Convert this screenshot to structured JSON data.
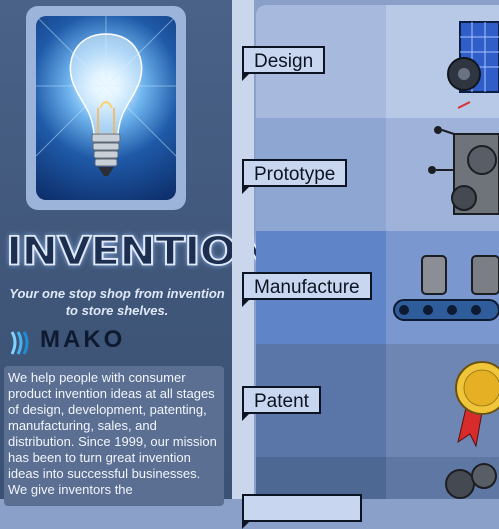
{
  "brand": {
    "title": "INVENTION",
    "tagline": "Your one stop shop from invention to store shelves.",
    "logo_text": "MAKO",
    "logo_subtext": "",
    "colors": {
      "left_panel": "#3f5679",
      "accent": "#9cb3da",
      "label_border": "#0c1322"
    }
  },
  "description": "We help people with consumer product invention ideas at all stages of design, development, patenting, manufacturing, sales, and distribution. Since 1999, our mission has been to turn great invention ideas into successful businesses. We give inventors the",
  "stages": [
    {
      "label": "Design",
      "icon": "server-gear-icon"
    },
    {
      "label": "Prototype",
      "icon": "gears-machine-icon"
    },
    {
      "label": "Manufacture",
      "icon": "conveyor-belt-icon"
    },
    {
      "label": "Patent",
      "icon": "award-seal-icon"
    },
    {
      "label": "",
      "icon": "gears-icon"
    }
  ]
}
